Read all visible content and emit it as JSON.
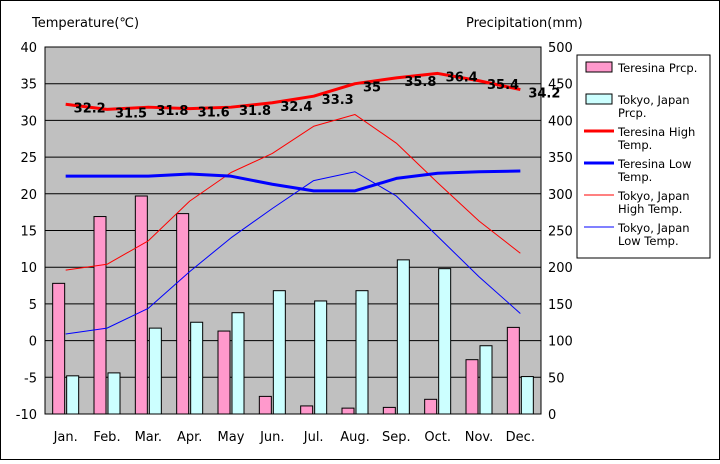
{
  "chart_data": {
    "type": "bar",
    "title": "",
    "y_left_label": "Temperature(℃)",
    "y_right_label": "Precipitation(mm)",
    "y_left_range": [
      -10,
      40
    ],
    "y_right_range": [
      0,
      500
    ],
    "y_left_ticks": [
      "40",
      "35",
      "30",
      "25",
      "20",
      "15",
      "10",
      "5",
      "0",
      "-5",
      "-10"
    ],
    "y_right_ticks": [
      "500",
      "450",
      "400",
      "350",
      "300",
      "250",
      "200",
      "150",
      "100",
      "50",
      "0"
    ],
    "categories": [
      "Jan.",
      "Feb.",
      "Mar.",
      "Apr.",
      "May",
      "Jun.",
      "Jul.",
      "Aug.",
      "Sep.",
      "Oct.",
      "Nov.",
      "Dec."
    ],
    "grid": true,
    "legend_position": "right",
    "series": [
      {
        "name": "Teresina Prcp.",
        "type": "bar",
        "axis": "right",
        "color": "#ff99cc",
        "values": [
          178,
          269,
          297,
          273,
          113,
          24,
          11,
          8,
          9,
          20,
          74,
          118
        ]
      },
      {
        "name": "Tokyo, Japan Prcp.",
        "type": "bar",
        "axis": "right",
        "color": "#ccffff",
        "values": [
          52,
          56,
          117,
          125,
          138,
          168,
          154,
          168,
          210,
          198,
          93,
          51
        ]
      },
      {
        "name": "Teresina High Temp.",
        "type": "line",
        "axis": "left",
        "color": "#ff0000",
        "values": [
          32.2,
          31.5,
          31.8,
          31.6,
          31.8,
          32.4,
          33.3,
          35,
          35.8,
          36.4,
          35.4,
          34.2
        ],
        "labels": [
          "32.2",
          "31.5",
          "31.8",
          "31.6",
          "31.8",
          "32.4",
          "33.3",
          "35",
          "35.8",
          "36.4",
          "35.4",
          "34.2"
        ]
      },
      {
        "name": "Teresina Low Temp.",
        "type": "line",
        "axis": "left",
        "color": "#0000ff",
        "values": [
          22.4,
          22.4,
          22.4,
          22.7,
          22.4,
          21.3,
          20.4,
          20.4,
          22.1,
          22.8,
          23.0,
          23.1
        ]
      },
      {
        "name": "Tokyo, Japan High Temp.",
        "type": "line",
        "axis": "left",
        "color": "#ff0000",
        "values": [
          9.6,
          10.4,
          13.6,
          19.0,
          22.9,
          25.5,
          29.2,
          30.8,
          26.9,
          21.5,
          16.3,
          11.9
        ]
      },
      {
        "name": "Tokyo, Japan Low Temp.",
        "type": "line",
        "axis": "left",
        "color": "#0000ff",
        "values": [
          0.9,
          1.7,
          4.4,
          9.4,
          14.0,
          18.0,
          21.8,
          23.0,
          19.7,
          14.2,
          8.7,
          3.7
        ]
      }
    ],
    "legend": [
      {
        "lines": [
          "Teresina Prcp."
        ],
        "kind": "box",
        "color": "#ff99cc"
      },
      {
        "lines": [
          "Tokyo, Japan",
          "Prcp."
        ],
        "kind": "box",
        "color": "#ccffff"
      },
      {
        "lines": [
          "Teresina High",
          "Temp."
        ],
        "kind": "thick",
        "color": "#ff0000"
      },
      {
        "lines": [
          "Teresina Low",
          "Temp."
        ],
        "kind": "thick",
        "color": "#0000ff"
      },
      {
        "lines": [
          "Tokyo, Japan",
          "High Temp."
        ],
        "kind": "thin",
        "color": "#ff0000"
      },
      {
        "lines": [
          "Tokyo, Japan",
          "Low Temp."
        ],
        "kind": "thin",
        "color": "#0000ff"
      }
    ]
  }
}
